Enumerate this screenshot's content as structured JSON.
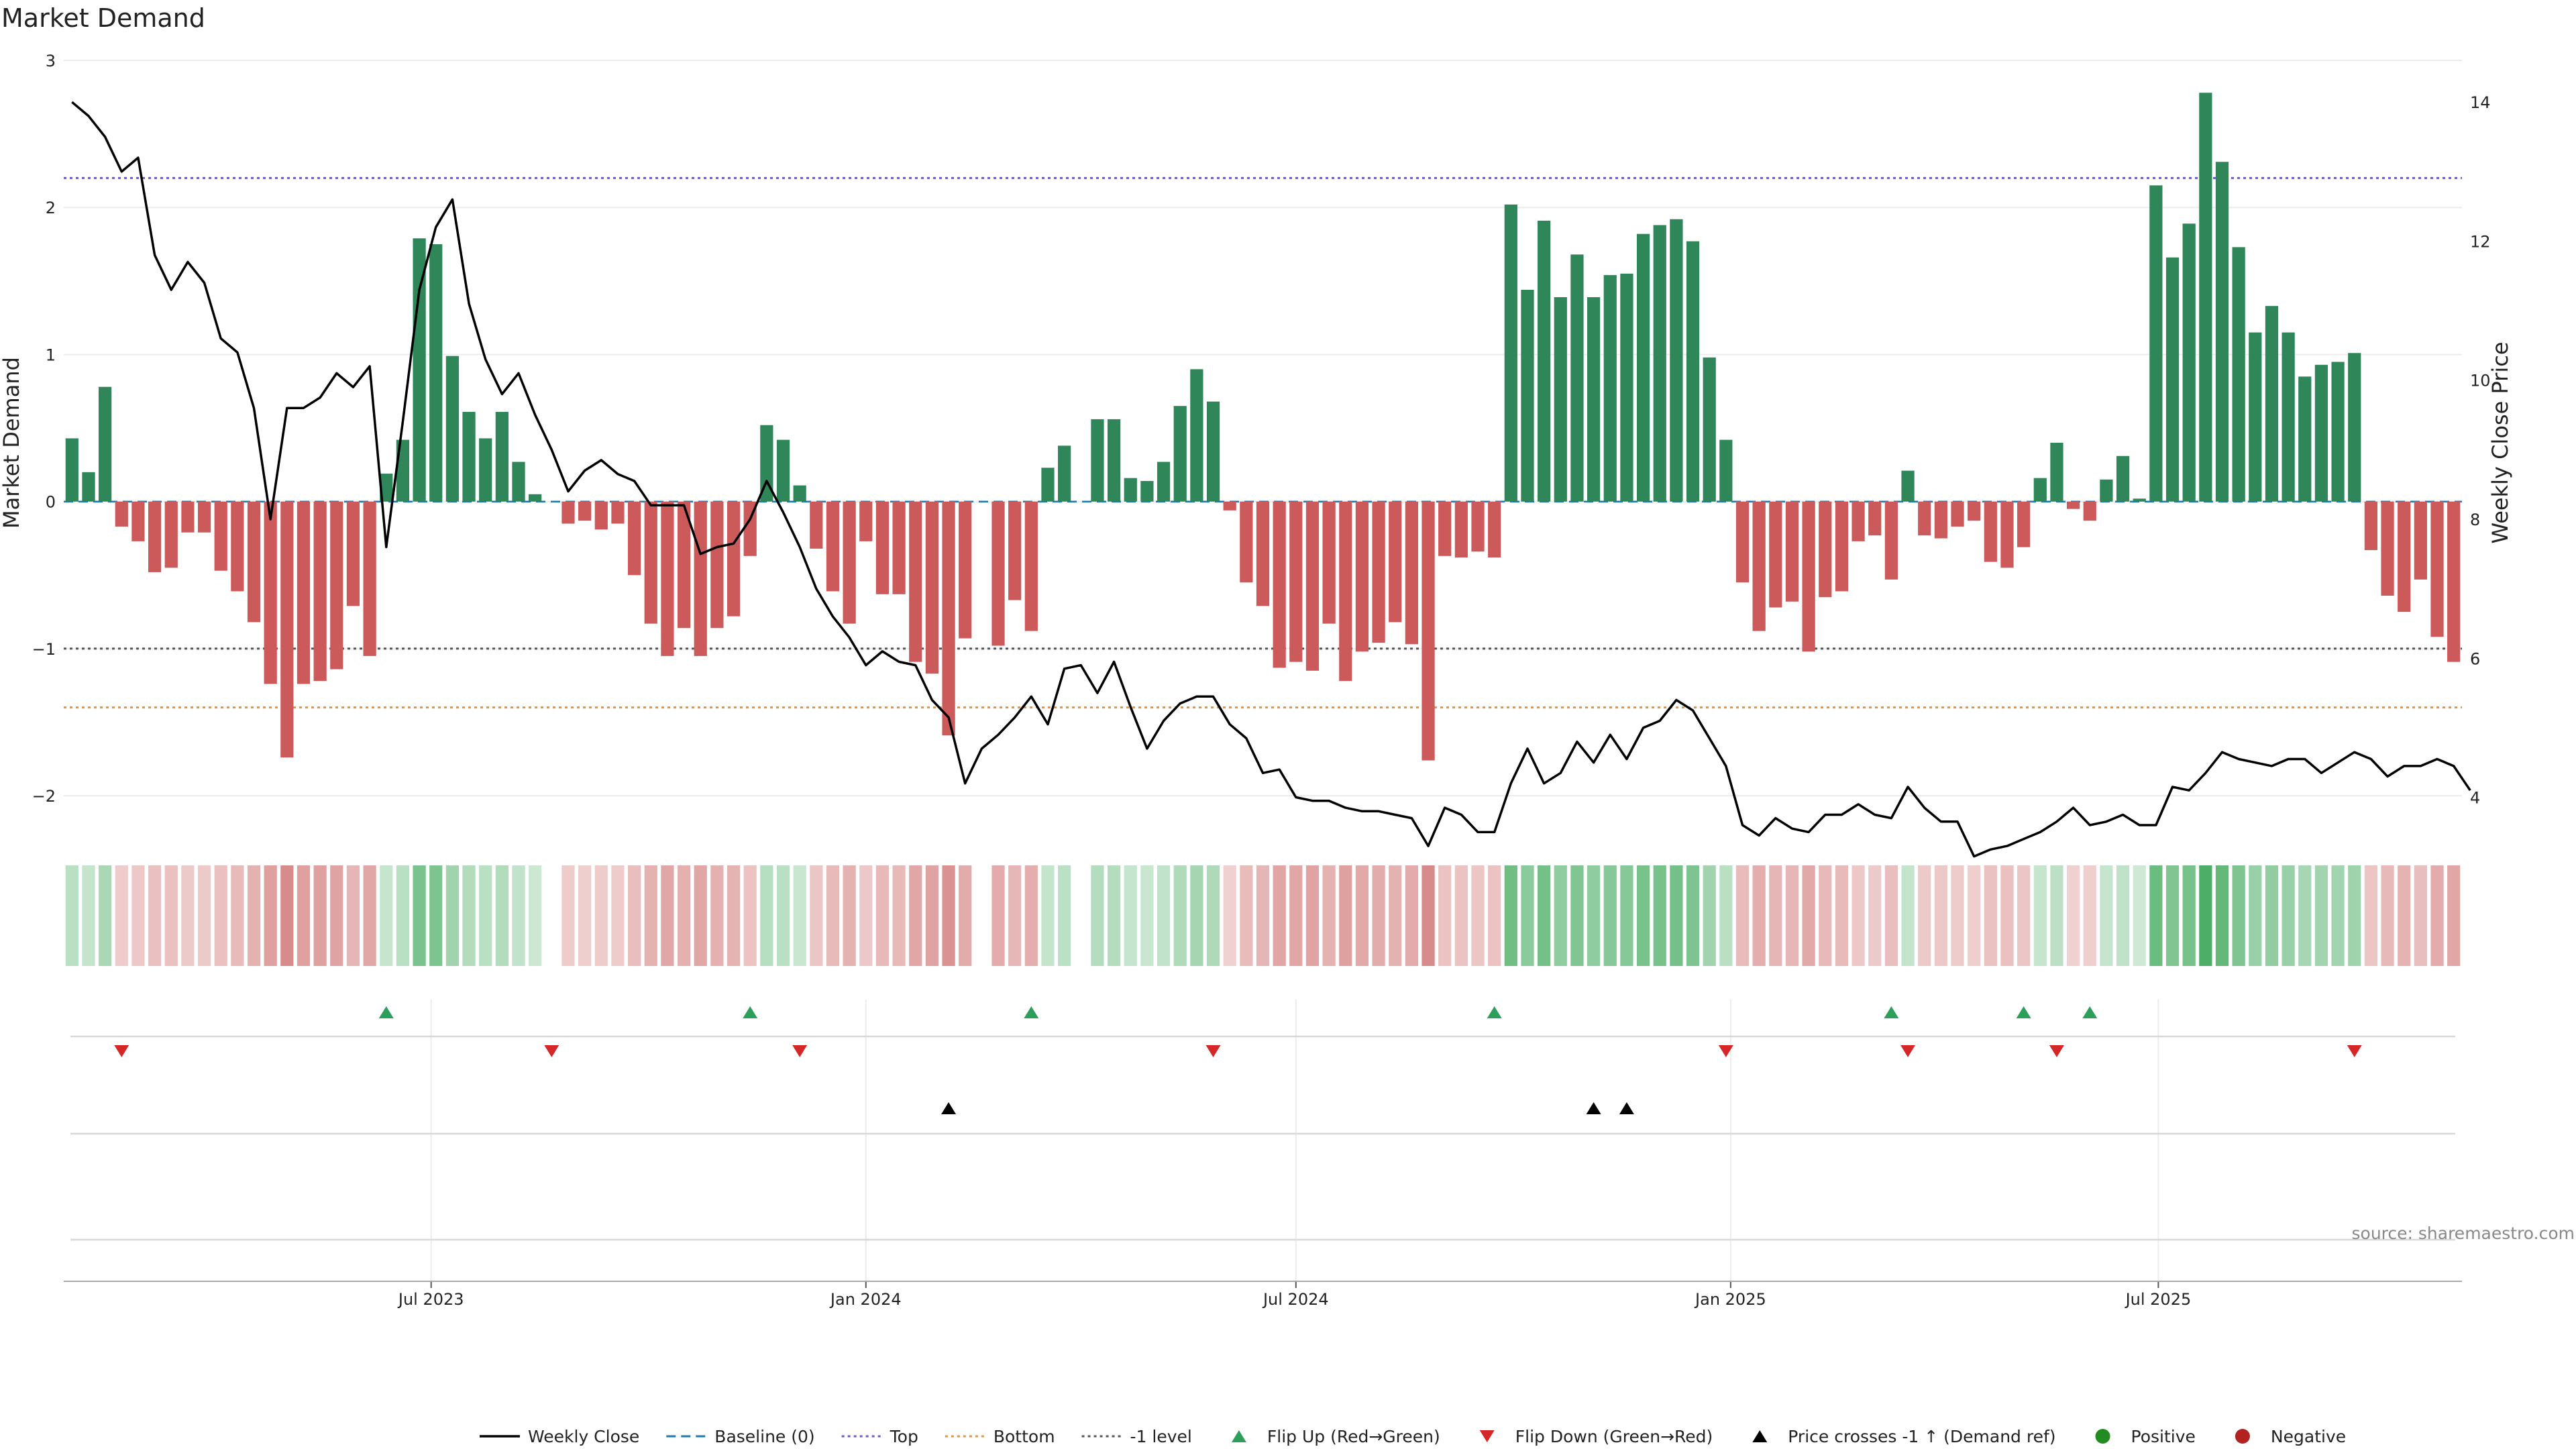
{
  "chart_data": {
    "type": "bar",
    "title": "Market Demand",
    "ylabel": "Market Demand",
    "y2label": "Weekly Close Price",
    "ylim": [
      -2.2,
      3.0
    ],
    "y2lim": [
      3.6,
      14.6
    ],
    "yticks": [
      -2,
      -1,
      0,
      1,
      2,
      3
    ],
    "yticklabels": [
      "−2",
      "−1",
      "0",
      "1",
      "2",
      "3"
    ],
    "y2ticks": [
      4,
      6,
      8,
      10,
      12,
      14
    ],
    "reference_lines": {
      "top": 2.2,
      "bottom": -1.4,
      "minus_one": -1.0,
      "baseline": 0
    },
    "x_start": "2023-01-30",
    "xticks": [
      {
        "date": "2023-07-01",
        "label": "Jul 2023"
      },
      {
        "date": "2024-01-01",
        "label": "Jan 2024"
      },
      {
        "date": "2024-07-01",
        "label": "Jul 2024"
      },
      {
        "date": "2025-01-01",
        "label": "Jan 2025"
      },
      {
        "date": "2025-07-01",
        "label": "Jul 2025"
      }
    ],
    "demand": [
      0.43,
      0.2,
      0.78,
      -0.17,
      -0.27,
      -0.48,
      -0.45,
      -0.21,
      -0.21,
      -0.47,
      -0.61,
      -0.82,
      -1.24,
      -1.74,
      -1.24,
      -1.22,
      -1.14,
      -0.71,
      -1.05,
      0.19,
      0.42,
      1.79,
      1.75,
      0.99,
      0.61,
      0.43,
      0.61,
      0.27,
      0.05,
      0,
      -0.15,
      -0.13,
      -0.19,
      -0.15,
      -0.5,
      -0.83,
      -1.05,
      -0.86,
      -1.05,
      -0.86,
      -0.78,
      -0.37,
      0.52,
      0.42,
      0.11,
      -0.32,
      -0.61,
      -0.83,
      -0.27,
      -0.63,
      -0.63,
      -1.09,
      -1.17,
      -1.59,
      -0.93,
      0,
      -0.98,
      -0.67,
      -0.88,
      0.23,
      0.38,
      0,
      0.56,
      0.56,
      0.16,
      0.14,
      0.27,
      0.65,
      0.9,
      0.68,
      -0.06,
      -0.55,
      -0.71,
      -1.13,
      -1.09,
      -1.15,
      -0.83,
      -1.22,
      -1.02,
      -0.96,
      -0.82,
      -0.97,
      -1.76,
      -0.37,
      -0.38,
      -0.34,
      -0.38,
      2.02,
      1.44,
      1.91,
      1.39,
      1.68,
      1.39,
      1.54,
      1.55,
      1.82,
      1.88,
      1.92,
      1.77,
      0.98,
      0.42,
      -0.55,
      -0.88,
      -0.72,
      -0.68,
      -1.02,
      -0.65,
      -0.61,
      -0.27,
      -0.23,
      -0.53,
      0.21,
      -0.23,
      -0.25,
      -0.17,
      -0.13,
      -0.41,
      -0.45,
      -0.31,
      0.16,
      0.4,
      -0.05,
      -0.13,
      0.15,
      0.31,
      0.02,
      2.15,
      1.66,
      1.89,
      2.78,
      2.31,
      1.73,
      1.15,
      1.33,
      1.15,
      0.85,
      0.93,
      0.95,
      1.01,
      -0.33,
      -0.64,
      -0.75,
      -0.53,
      -0.92,
      -1.09
    ],
    "close": [
      14.0,
      13.8,
      13.5,
      13.0,
      13.2,
      11.8,
      11.3,
      11.7,
      11.4,
      10.6,
      10.4,
      9.6,
      8.0,
      9.6,
      9.6,
      9.75,
      10.1,
      9.9,
      10.2,
      7.6,
      9.4,
      11.3,
      12.2,
      12.6,
      11.1,
      10.3,
      9.8,
      10.1,
      9.5,
      9.0,
      8.4,
      8.7,
      8.85,
      8.65,
      8.55,
      8.2,
      8.2,
      8.2,
      7.5,
      7.6,
      7.65,
      8.0,
      8.55,
      8.1,
      7.6,
      7.0,
      6.6,
      6.3,
      5.9,
      6.1,
      5.95,
      5.9,
      5.4,
      5.15,
      4.2,
      4.7,
      4.9,
      5.15,
      5.45,
      5.05,
      5.85,
      5.9,
      5.5,
      5.95,
      5.3,
      4.7,
      5.1,
      5.35,
      5.45,
      5.45,
      5.05,
      4.85,
      4.35,
      4.4,
      4.0,
      3.95,
      3.95,
      3.85,
      3.8,
      3.8,
      3.75,
      3.7,
      3.3,
      3.85,
      3.75,
      3.5,
      3.5,
      4.2,
      4.7,
      4.2,
      4.35,
      4.8,
      4.5,
      4.9,
      4.55,
      5.0,
      5.1,
      5.4,
      5.25,
      4.85,
      4.45,
      3.6,
      3.45,
      3.7,
      3.55,
      3.5,
      3.75,
      3.75,
      3.9,
      3.75,
      3.7,
      4.15,
      3.85,
      3.65,
      3.65,
      3.15,
      3.25,
      3.3,
      3.4,
      3.5,
      3.65,
      3.85,
      3.6,
      3.65,
      3.75,
      3.6,
      3.6,
      4.15,
      4.1,
      4.35,
      4.65,
      4.55,
      4.5,
      4.45,
      4.55,
      4.55,
      4.35,
      4.5,
      4.65,
      4.55,
      4.3,
      4.45,
      4.45,
      4.55,
      4.45,
      4.1
    ],
    "flip_up_idx": [
      19,
      41,
      58,
      86,
      110,
      118,
      122
    ],
    "flip_down_idx": [
      3,
      29,
      44,
      69,
      100,
      111,
      120,
      138
    ],
    "cross_up_idx": [
      53,
      92,
      94
    ],
    "source": "source: sharemaestro.com",
    "legend": [
      "Weekly Close",
      "Baseline (0)",
      "Top",
      "Bottom",
      "-1 level",
      "Flip Up (Red→Green)",
      "Flip Down (Green→Red)",
      "Price crosses -1 ↑ (Demand ref)",
      "Positive",
      "Negative"
    ],
    "colors": {
      "positive": "#2e8659",
      "negative": "#cd5a5a",
      "close": "#000000",
      "baseline": "#1f77b4",
      "top": "#6a5acd",
      "bottom": "#e39440",
      "minus_one": "#555555",
      "flip_up": "#2ca05a",
      "flip_down": "#d62728",
      "cross": "#000000",
      "dot_pos": "#228b22",
      "dot_neg": "#b22222"
    }
  }
}
